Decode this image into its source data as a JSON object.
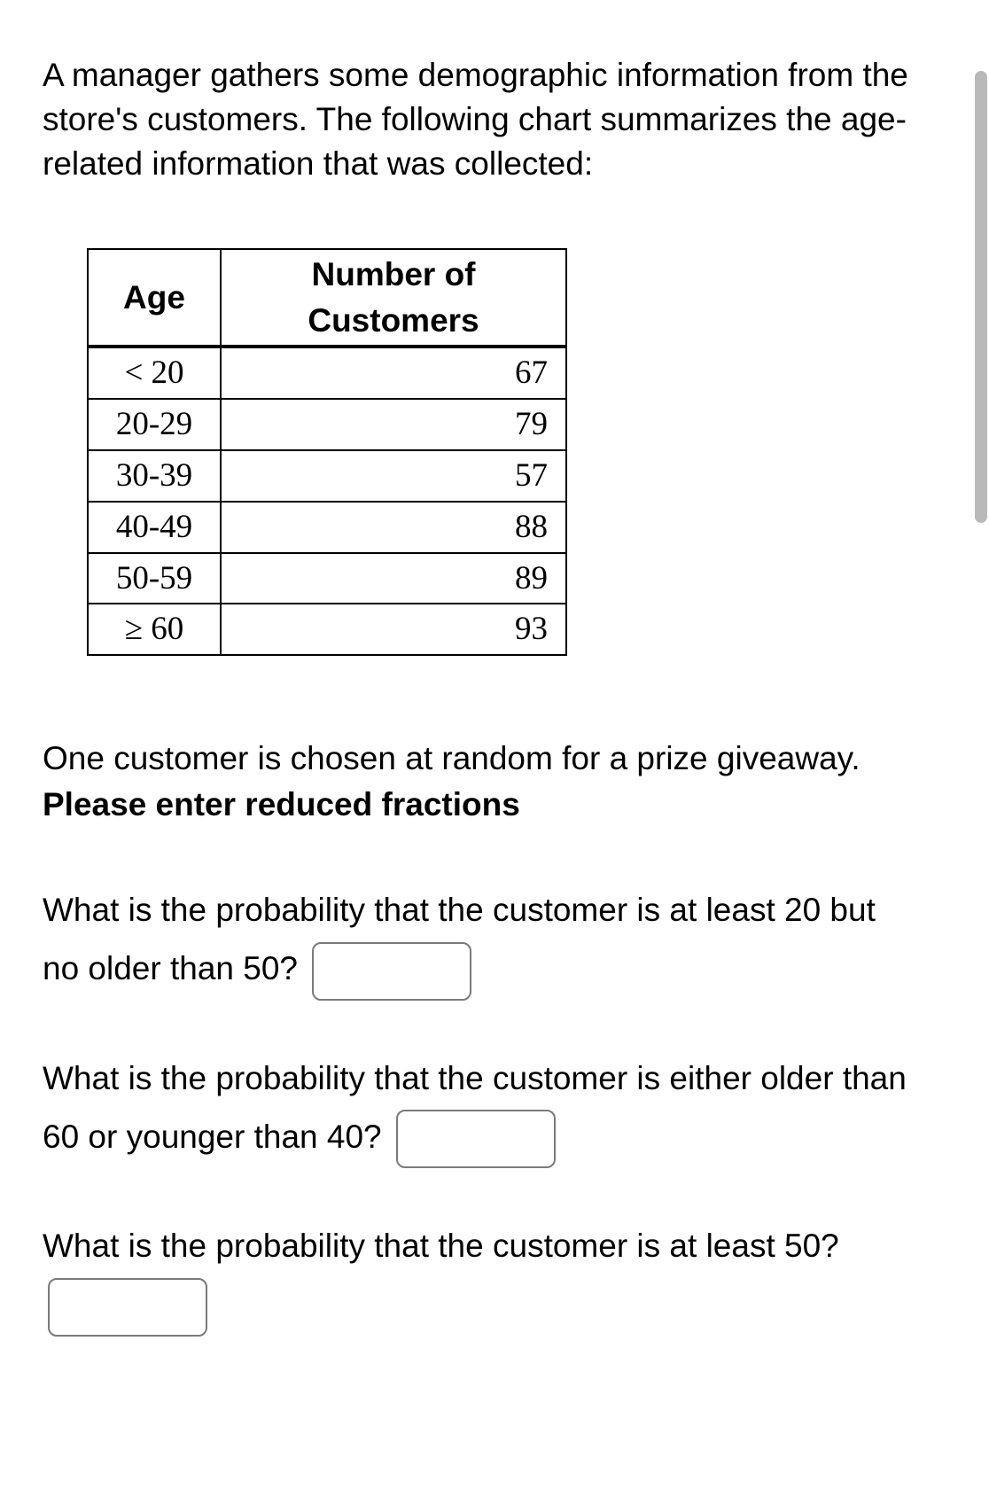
{
  "intro_text": "A manager gathers some demographic information from the store's customers. The following chart summarizes the age-related information that was collected:",
  "table": {
    "columns": [
      "Age",
      "Number of Customers"
    ],
    "rows": [
      {
        "age": "< 20",
        "num": "67"
      },
      {
        "age": "20-29",
        "num": "79"
      },
      {
        "age": "30-39",
        "num": "57"
      },
      {
        "age": "40-49",
        "num": "88"
      },
      {
        "age": "50-59",
        "num": "89"
      },
      {
        "age": "≥ 60",
        "num": "93"
      }
    ],
    "border_color": "#000000",
    "header_bottom_border_width": 4,
    "cell_fontsize": 37
  },
  "instruction": {
    "part1": "One customer is chosen at random for a prize giveaway. ",
    "bold": "Please enter reduced fractions"
  },
  "q1": {
    "before": "What is the probability that the customer is at least 20 but no older than 50? ",
    "value": ""
  },
  "q2": {
    "before": "What is the probability that the customer is either older than 60 or younger than 40? ",
    "value": ""
  },
  "q3": {
    "before": "What is the probability that the customer is at least 50? ",
    "value": ""
  },
  "colors": {
    "text": "#000000",
    "background": "#ffffff",
    "input_border": "#7a7a7a",
    "scrollbar_thumb": "#b9b9b9"
  }
}
